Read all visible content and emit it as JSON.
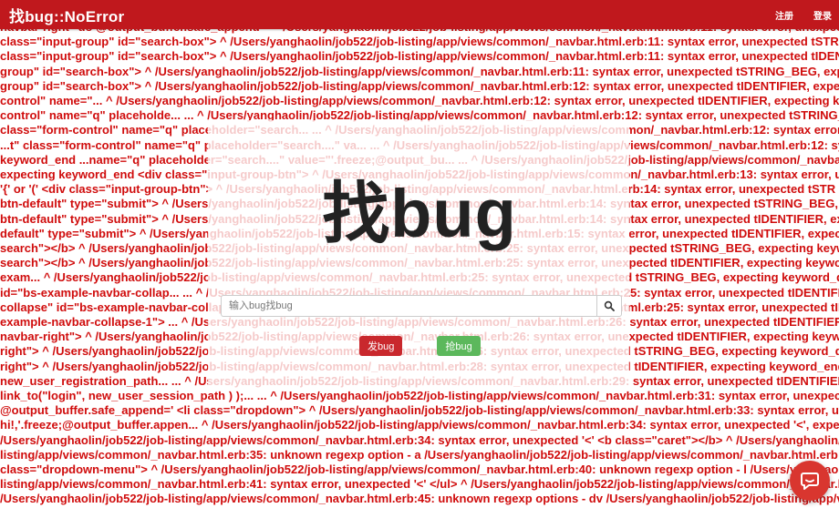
{
  "navbar": {
    "brand": "找bug::NoError",
    "links": [
      "注册",
      "登录"
    ]
  },
  "hero": {
    "title": "找bug"
  },
  "search": {
    "placeholder": "输入bug找bug",
    "icon": "search-icon"
  },
  "buttons": {
    "post_bug": "发bug",
    "grab_bug": "抢bug"
  },
  "chat_widget": {
    "icon": "chat-bubble-icon"
  },
  "colors": {
    "navbar": "#c0181d",
    "error_text": "#d00c0c",
    "post_button": "#c9282d",
    "grab_button": "#5cb85c",
    "chat_widget": "#d9362f"
  },
  "error_lines": [
    "navbar-right\" do @output_buffer.safe_append='  ^ /Users/yanghaolin/job522/job-listing/app/views/common/_navbar.html.erb:11: syntax error, unexpected tSTRING_BEG",
    "class=\"input-group\" id=\"search-box\"> ^ /Users/yanghaolin/job522/job-listing/app/views/common/_navbar.html.erb:11: syntax error, unexpected tSTRING_BEG",
    "class=\"input-group\" id=\"search-box\"> ^ /Users/yanghaolin/job522/job-listing/app/views/common/_navbar.html.erb:11: syntax error, unexpected tIDENTIFIER",
    "group\" id=\"search-box\"> ^ /Users/yanghaolin/job522/job-listing/app/views/common/_navbar.html.erb:11: syntax error, unexpected tSTRING_BEG, expecting",
    "group\" id=\"search-box\"> ^ /Users/yanghaolin/job522/job-listing/app/views/common/_navbar.html.erb:12: syntax error, unexpected tIDENTIFIER, expecting",
    "control\" name=\"... ^ /Users/yanghaolin/job522/job-listing/app/views/common/_navbar.html.erb:12: syntax error, unexpected tIDENTIFIER, expecting key",
    "control\" name=\"q\" placeholde... ... ^ /Users/yanghaolin/job522/job-listing/app/views/common/_navbar.html.erb:12: syntax error, unexpected tSTRING_BEG",
    "class=\"form-control\" name=\"q\" placeholder=\"search... ... ^ /Users/yanghaolin/job522/job-listing/app/views/common/_navbar.html.erb:12: syntax error, un",
    "...t\" class=\"form-control\" name=\"q\" placeholder=\"search....\" va... ... ^ /Users/yanghaolin/job522/job-listing/app/views/common/_navbar.html.erb:12: syntax e",
    "keyword_end ...name=\"q\" placeholder=\"search....\" value=\"'.freeze;@output_bu... ... ^ /Users/yanghaolin/job522/job-listing/app/views/common/_navbar.html",
    "expecting keyword_end <div class=\"input-group-btn\"> ^ /Users/yanghaolin/job522/job-listing/app/views/common/_navbar.html.erb:13: syntax error, unex",
    "'{' or '(' <div class=\"input-group-btn\"> ^ /Users/yanghaolin/job522/job-listing/app/views/common/_navbar.html.erb:14: syntax error, unexpected tSTR",
    "btn-default\" type=\"submit\"> ^ /Users/yanghaolin/job522/job-listing/app/views/common/_navbar.html.erb:14: syntax error, unexpected tSTRING_BEG, exp",
    "btn-default\" type=\"submit\"> ^ /Users/yanghaolin/job522/job-listing/app/views/common/_navbar.html.erb:14: syntax error, unexpected tIDENTIFIER, expe",
    "default\" type=\"submit\"> ^ /Users/yanghaolin/job522/job-listing/app/views/common/_navbar.html.erb:15: syntax error, unexpected tIDENTIFIER, expecting",
    "search\"></b> ^ /Users/yanghaolin/job522/job-listing/app/views/common/_navbar.html.erb:25: syntax error, unexpected tSTRING_BEG, expecting keyword",
    "search\"></b> ^ /Users/yanghaolin/job522/job-listing/app/views/common/_navbar.html.erb:25: syntax error, unexpected tIDENTIFIER, expecting keyword_e",
    "exam... ^ /Users/yanghaolin/job522/job-listing/app/views/common/_navbar.html.erb:25: syntax error, unexpected tSTRING_BEG, expecting keyword_do o",
    "id=\"bs-example-navbar-collap... ... ^ /Users/yanghaolin/job522/job-listing/app/views/common/_navbar.html.erb:25: syntax error, unexpected tIDENTIFIER, ex",
    "collapse\" id=\"bs-example-navbar-collap... ^ /Users/yanghaolin/job522/job-listing/app/views/common/_navbar.html.erb:25: syntax error, unexpected tIDENTIFI",
    "example-navbar-collapse-1\"> ... ^ /Users/yanghaolin/job522/job-listing/app/views/common/_navbar.html.erb:26: syntax error, unexpected tIDENTIFIER, expe",
    "navbar-right\"> ^ /Users/yanghaolin/job522/job-listing/app/views/common/_navbar.html.erb:26: syntax error, unexpected tIDENTIFIER, expecting keyword",
    "right\"> ^ /Users/yanghaolin/job522/job-listing/app/views/common/_navbar.html.erb:26: syntax error, unexpected tSTRING_BEG, expecting keyword_do or",
    "right\"> ^ /Users/yanghaolin/job522/job-listing/app/views/common/_navbar.html.erb:28: syntax error, unexpected tIDENTIFIER, expecting keyword_end ...u",
    "new_user_registration_path... ... ^ /Users/yanghaolin/job522/job-listing/app/views/common/_navbar.html.erb:29: syntax error, unexpected tIDENTIFIER, expe",
    "link_to(\"login\", new_user_session_path ) );... ... ^ /Users/yanghaolin/job522/job-listing/app/views/common/_navbar.html.erb:31: syntax error, unexpected tI",
    "@output_buffer.safe_append='  <li class=\"dropdown\"> ^ /Users/yanghaolin/job522/job-listing/app/views/common/_navbar.html.erb:33: syntax error, unex",
    "hi!,'.freeze;@output_buffer.appen... ^ /Users/yanghaolin/job522/job-listing/app/views/common/_navbar.html.erb:34: syntax error, unexpected '<', expecting",
    "/Users/yanghaolin/job522/job-listing/app/views/common/_navbar.html.erb:34: syntax error, unexpected '<' <b class=\"caret\"></b> ^ /Users/yanghaolin/job522/",
    "listing/app/views/common/_navbar.html.erb:35: unknown regexp option - a /Users/yanghaolin/job522/job-listing/app/views/common/_navbar.html.erb:36: synta",
    "class=\"dropdown-menu\"> ^ /Users/yanghaolin/job522/job-listing/app/views/common/_navbar.html.erb:40: unknown regexp option - l /Users/yanghaolin/job522/job-",
    "listing/app/views/common/_navbar.html.erb:41: syntax error, unexpected '<' </ul> ^ /Users/yanghaolin/job522/job-listing/app/views/common/_navbar.htm",
    "/Users/yanghaolin/job522/job-listing/app/views/common/_navbar.html.erb:45: unknown regexp options - dv /Users/yanghaolin/job522/job-listing/app/views/c"
  ]
}
